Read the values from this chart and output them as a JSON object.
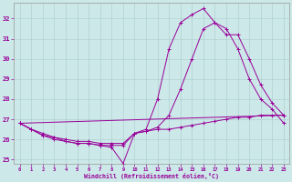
{
  "xlabel": "Windchill (Refroidissement éolien,°C)",
  "background_color": "#cce8e8",
  "line_color": "#990099",
  "grid_color": "#aacccc",
  "xlim": [
    -0.5,
    23.5
  ],
  "ylim": [
    24.8,
    32.8
  ],
  "yticks": [
    25,
    26,
    27,
    28,
    29,
    30,
    31,
    32
  ],
  "xticks": [
    0,
    1,
    2,
    3,
    4,
    5,
    6,
    7,
    8,
    9,
    10,
    11,
    12,
    13,
    14,
    15,
    16,
    17,
    18,
    19,
    20,
    21,
    22,
    23
  ],
  "lines": [
    {
      "x": [
        0,
        1,
        2,
        3,
        4,
        5,
        6,
        7,
        8,
        9,
        10,
        11,
        12,
        13,
        14,
        15,
        16,
        17,
        18,
        19,
        20,
        21,
        22,
        23
      ],
      "y": [
        26.8,
        26.5,
        26.2,
        26.0,
        25.9,
        25.8,
        25.8,
        25.7,
        25.6,
        24.8,
        26.3,
        26.5,
        28.0,
        30.5,
        31.8,
        32.2,
        32.5,
        31.8,
        31.2,
        31.2,
        30.0,
        28.7,
        27.8,
        27.2
      ]
    },
    {
      "x": [
        0,
        1,
        2,
        3,
        4,
        5,
        6,
        7,
        8,
        9,
        10,
        11,
        12,
        13,
        14,
        15,
        16,
        17,
        18,
        19,
        20,
        21,
        22,
        23
      ],
      "y": [
        26.8,
        26.5,
        26.3,
        26.1,
        26.0,
        25.9,
        25.9,
        25.8,
        25.8,
        25.8,
        26.3,
        26.4,
        26.6,
        27.2,
        28.5,
        30.0,
        31.5,
        31.8,
        31.5,
        30.5,
        29.0,
        28.0,
        27.5,
        26.8
      ]
    },
    {
      "x": [
        0,
        1,
        2,
        3,
        4,
        5,
        6,
        7,
        8,
        9,
        10,
        11,
        12,
        13,
        14,
        15,
        16,
        17,
        18,
        19,
        20,
        21,
        22,
        23
      ],
      "y": [
        26.8,
        26.5,
        26.2,
        26.1,
        25.9,
        25.8,
        25.8,
        25.7,
        25.7,
        25.7,
        26.3,
        26.4,
        26.5,
        26.5,
        26.6,
        26.7,
        26.8,
        26.9,
        27.0,
        27.1,
        27.1,
        27.2,
        27.2,
        27.2
      ]
    },
    {
      "x": [
        0,
        23
      ],
      "y": [
        26.8,
        27.2
      ]
    }
  ]
}
